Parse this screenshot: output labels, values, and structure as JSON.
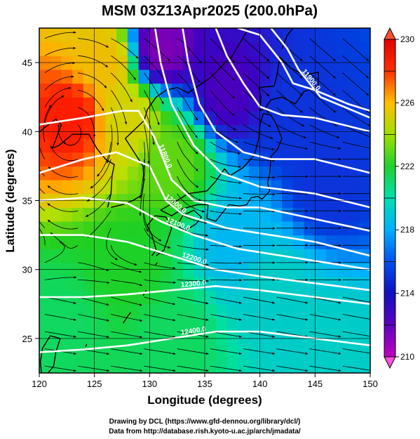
{
  "chart_data": {
    "type": "heatmap",
    "title": "MSM 03Z13Apr2025 (200.0hPa)",
    "xlabel": "Longitude (degrees)",
    "ylabel": "Latitude  (degrees)",
    "xlim": [
      120,
      150
    ],
    "ylim": [
      22.5,
      47.5
    ],
    "xticks": [
      120,
      125,
      130,
      135,
      140,
      145,
      150
    ],
    "yticks": [
      25,
      30,
      35,
      40,
      45
    ],
    "grid": true,
    "colorbar": {
      "min": 210,
      "max": 230,
      "ticks": [
        210,
        214,
        218,
        222,
        226,
        230
      ],
      "units": "",
      "colors": [
        "#b000b0",
        "#4000c0",
        "#0040e0",
        "#00b0ff",
        "#00e0a0",
        "#20d020",
        "#c0e000",
        "#ffb000",
        "#ff2000",
        "#e00000"
      ]
    },
    "shaded_field_samples": [
      {
        "lon": 123,
        "lat": 41,
        "value": 228
      },
      {
        "lon": 126,
        "lat": 45,
        "value": 225
      },
      {
        "lon": 128,
        "lat": 41,
        "value": 224
      },
      {
        "lon": 132,
        "lat": 38,
        "value": 222
      },
      {
        "lon": 131,
        "lat": 46,
        "value": 211
      },
      {
        "lon": 137,
        "lat": 43,
        "value": 212
      },
      {
        "lon": 143,
        "lat": 41,
        "value": 214
      },
      {
        "lon": 146,
        "lat": 36,
        "value": 214
      },
      {
        "lon": 138,
        "lat": 32,
        "value": 217
      },
      {
        "lon": 141,
        "lat": 29,
        "value": 218
      },
      {
        "lon": 128,
        "lat": 30,
        "value": 221
      },
      {
        "lon": 122,
        "lat": 26,
        "value": 220
      },
      {
        "lon": 132,
        "lat": 25,
        "value": 220
      },
      {
        "lon": 146,
        "lat": 25,
        "value": 218
      }
    ],
    "contours": [
      {
        "label": "11900.0",
        "points": [
          [
            141,
            47.5
          ],
          [
            142.5,
            46
          ],
          [
            143.5,
            44.5
          ],
          [
            145.5,
            42.5
          ],
          [
            147,
            42
          ],
          [
            150,
            41
          ]
        ]
      },
      {
        "label": "",
        "points": [
          [
            138,
            47.5
          ],
          [
            140,
            47
          ],
          [
            142,
            45
          ],
          [
            143,
            43.5
          ],
          [
            145,
            43
          ],
          [
            148,
            42
          ],
          [
            150,
            41.5
          ]
        ]
      },
      {
        "label": "",
        "points": [
          [
            136,
            47.5
          ],
          [
            137,
            45.5
          ],
          [
            138.5,
            43.5
          ],
          [
            140,
            41.8
          ],
          [
            142,
            41.2
          ],
          [
            145,
            41
          ],
          [
            150,
            40
          ]
        ]
      },
      {
        "label": "",
        "points": [
          [
            133,
            47.5
          ],
          [
            133.5,
            45
          ],
          [
            134.5,
            42
          ],
          [
            136,
            40
          ],
          [
            138.5,
            38.5
          ],
          [
            141,
            38
          ],
          [
            145,
            38
          ],
          [
            150,
            37
          ]
        ]
      },
      {
        "label": "",
        "points": [
          [
            130.5,
            47.5
          ],
          [
            131,
            45
          ],
          [
            132,
            42
          ],
          [
            134,
            39
          ],
          [
            136.5,
            37
          ],
          [
            140,
            36
          ],
          [
            145,
            35.5
          ],
          [
            150,
            34.5
          ]
        ]
      },
      {
        "label": "11800.0",
        "points": [
          [
            120,
            40.5
          ],
          [
            124,
            41
          ],
          [
            127.5,
            41.5
          ],
          [
            129,
            41.5
          ],
          [
            130.5,
            39.5
          ],
          [
            132,
            36.5
          ],
          [
            134,
            35
          ],
          [
            137,
            34.5
          ],
          [
            140,
            34.5
          ],
          [
            143,
            34
          ],
          [
            150,
            32.8
          ]
        ]
      },
      {
        "label": "12000.0",
        "points": [
          [
            120,
            37
          ],
          [
            124,
            38
          ],
          [
            127,
            38.5
          ],
          [
            130,
            37.5
          ],
          [
            131.5,
            35
          ],
          [
            133,
            34
          ],
          [
            137,
            33
          ],
          [
            141,
            32.5
          ],
          [
            145,
            32
          ],
          [
            150,
            31
          ]
        ]
      },
      {
        "label": "12100.0",
        "points": [
          [
            120,
            35
          ],
          [
            124,
            35.2
          ],
          [
            128,
            34.8
          ],
          [
            131,
            33.5
          ],
          [
            134,
            32.5
          ],
          [
            138,
            31.5
          ],
          [
            142,
            31
          ],
          [
            150,
            30
          ]
        ]
      },
      {
        "label": "12200.0",
        "points": [
          [
            120,
            32.5
          ],
          [
            124,
            32.5
          ],
          [
            128,
            32
          ],
          [
            132,
            31
          ],
          [
            136,
            30
          ],
          [
            140,
            29.5
          ],
          [
            145,
            29
          ],
          [
            150,
            28.5
          ]
        ]
      },
      {
        "label": "12300.0",
        "points": [
          [
            120,
            28
          ],
          [
            124,
            28
          ],
          [
            128,
            28.2
          ],
          [
            132,
            28.5
          ],
          [
            136,
            28.8
          ],
          [
            140,
            28.5
          ],
          [
            145,
            28
          ],
          [
            150,
            27.5
          ]
        ]
      },
      {
        "label": "12400.0",
        "points": [
          [
            120,
            24
          ],
          [
            124,
            24.2
          ],
          [
            128,
            24.5
          ],
          [
            132,
            25
          ],
          [
            136,
            25.5
          ],
          [
            140,
            25.5
          ],
          [
            145,
            25
          ],
          [
            150,
            24.5
          ]
        ]
      }
    ],
    "wind_flow": "anticyclonic swirl centred near 123E 41N; strong westerly streamlines over 25-35N; north-westerly flow over Japan"
  },
  "credits": {
    "line1": "Drawing by DCL (https://www.gfd-dennou.org/library/dcl/)",
    "line2": "Data from http://database.rish.kyoto-u.ac.jp/arch/jmadata/"
  }
}
